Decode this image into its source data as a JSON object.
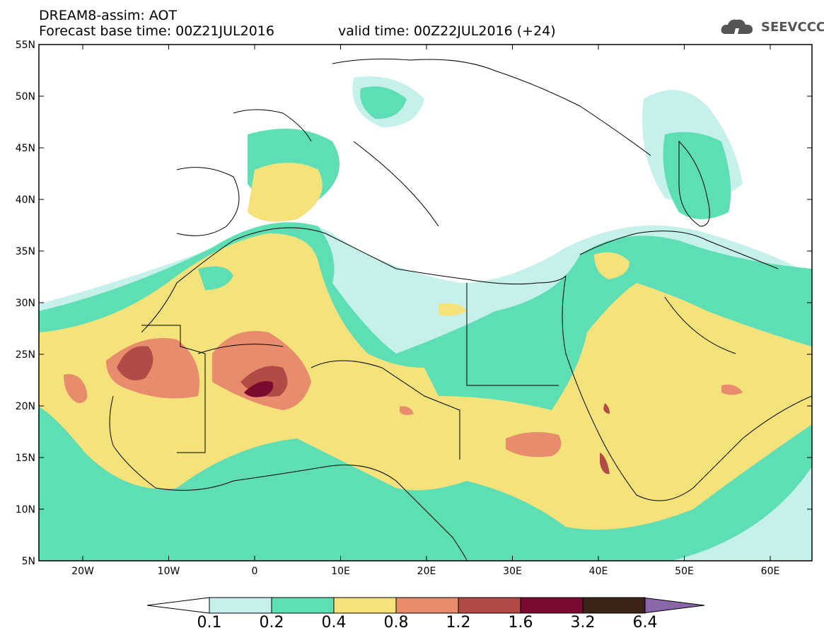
{
  "header": {
    "line1": "DREAM8-assim: AOT",
    "line2a": "Forecast base time: 00Z21JUL2016",
    "line2b": "valid time: 00Z22JUL2016 (+24)",
    "logo_text": "SEEVCCC"
  },
  "axes": {
    "lat_labels": [
      "55N",
      "50N",
      "45N",
      "40N",
      "35N",
      "30N",
      "25N",
      "20N",
      "15N",
      "10N",
      "5N"
    ],
    "lon_labels": [
      "20W",
      "10W",
      "0",
      "10E",
      "20E",
      "30E",
      "40E",
      "50E",
      "60E"
    ]
  },
  "colorbar": {
    "levels": [
      "0.1",
      "0.2",
      "0.4",
      "0.8",
      "1.2",
      "1.6",
      "3.2",
      "6.4"
    ],
    "colors": [
      "#c6f0ea",
      "#5ddeb4",
      "#f5e27a",
      "#e88c6e",
      "#b24b45",
      "#7a0a2e",
      "#3b2417",
      "#8b66a8"
    ],
    "under_color": "#ffffff"
  },
  "legend_items": [
    {
      "range": "0.1–0.2",
      "color": "#c6f0ea"
    },
    {
      "range": "0.2–0.4",
      "color": "#5ddeb4"
    },
    {
      "range": "0.4–0.8",
      "color": "#f5e27a"
    },
    {
      "range": "0.8–1.2",
      "color": "#e88c6e"
    },
    {
      "range": "1.2–1.6",
      "color": "#b24b45"
    },
    {
      "range": "1.6–3.2",
      "color": "#7a0a2e"
    },
    {
      "range": "3.2–6.4",
      "color": "#3b2417"
    }
  ]
}
